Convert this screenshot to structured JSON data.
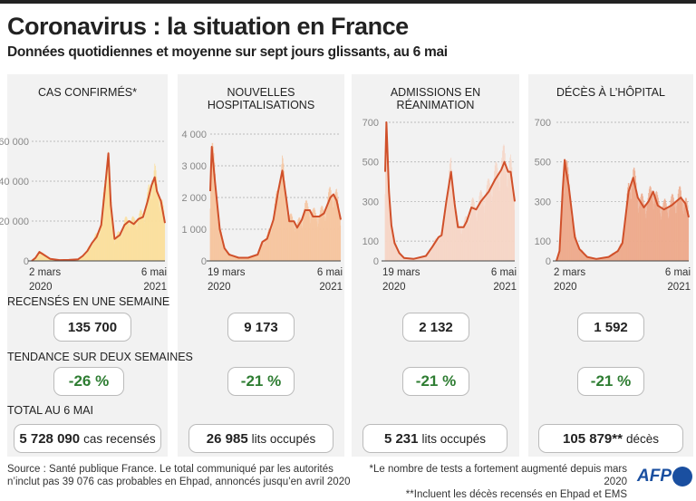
{
  "header": {
    "title": "Coronavirus : la situation en France",
    "subtitle": "Données quotidiennes et moyenne sur sept jours glissants, au 6 mai"
  },
  "colors": {
    "line": "#d0502a",
    "green": "#2e7d32",
    "panel": "#f2f2f2"
  },
  "sections": {
    "week": "RECENSÉS EN UNE SEMAINE",
    "trend": "TENDANCE SUR DEUX SEMAINES",
    "total": "TOTAL AU 6 MAI"
  },
  "chart_data": [
    {
      "type": "area",
      "title": "CAS CONFIRMÉS*",
      "fill": "#fbdf9c",
      "xlabel_start": [
        "2 mars",
        "2020"
      ],
      "xlabel_end": [
        "6 mai",
        "2021"
      ],
      "ylim": [
        0,
        60000
      ],
      "yticks": [
        {
          "v": 0,
          "label": "0"
        },
        {
          "v": 20000,
          "label": "20 000"
        },
        {
          "v": 40000,
          "label": "40 000"
        },
        {
          "v": 60000,
          "label": "60 000"
        }
      ],
      "days": 431,
      "series": [
        [
          0,
          0
        ],
        [
          12,
          1500
        ],
        [
          25,
          4500
        ],
        [
          40,
          3000
        ],
        [
          60,
          1000
        ],
        [
          90,
          400
        ],
        [
          120,
          500
        ],
        [
          150,
          800
        ],
        [
          165,
          2500
        ],
        [
          180,
          5000
        ],
        [
          195,
          9000
        ],
        [
          210,
          12000
        ],
        [
          225,
          18000
        ],
        [
          238,
          38000
        ],
        [
          248,
          54000
        ],
        [
          256,
          28000
        ],
        [
          268,
          11000
        ],
        [
          285,
          13000
        ],
        [
          300,
          18000
        ],
        [
          315,
          20000
        ],
        [
          330,
          18500
        ],
        [
          345,
          21000
        ],
        [
          360,
          22000
        ],
        [
          375,
          30000
        ],
        [
          388,
          38000
        ],
        [
          398,
          42000
        ],
        [
          405,
          35000
        ],
        [
          418,
          30000
        ],
        [
          431,
          19000
        ]
      ],
      "week": "135 700",
      "trend": "-26 %",
      "total": "5 728 090",
      "total_unit": "cas recensés"
    },
    {
      "type": "area",
      "title": "NOUVELLES HOSPITALISATIONS",
      "fill": "#f6c49e",
      "xlabel_start": [
        "19 mars",
        "2020"
      ],
      "xlabel_end": [
        "6 mai",
        "2021"
      ],
      "ylim": [
        0,
        4000
      ],
      "yticks": [
        {
          "v": 0,
          "label": "0"
        },
        {
          "v": 1000,
          "label": "1 000"
        },
        {
          "v": 2000,
          "label": "2 000"
        },
        {
          "v": 3000,
          "label": "3 000"
        },
        {
          "v": 4000,
          "label": "4 000"
        }
      ],
      "days": 413,
      "series": [
        [
          0,
          2200
        ],
        [
          5,
          3600
        ],
        [
          15,
          2500
        ],
        [
          30,
          1000
        ],
        [
          45,
          400
        ],
        [
          60,
          200
        ],
        [
          90,
          100
        ],
        [
          120,
          100
        ],
        [
          150,
          200
        ],
        [
          165,
          600
        ],
        [
          180,
          700
        ],
        [
          200,
          1300
        ],
        [
          215,
          2200
        ],
        [
          228,
          2850
        ],
        [
          240,
          2000
        ],
        [
          250,
          1250
        ],
        [
          265,
          1250
        ],
        [
          275,
          1050
        ],
        [
          290,
          1300
        ],
        [
          300,
          1600
        ],
        [
          315,
          1600
        ],
        [
          325,
          1400
        ],
        [
          345,
          1400
        ],
        [
          360,
          1500
        ],
        [
          380,
          2000
        ],
        [
          390,
          2100
        ],
        [
          400,
          1900
        ],
        [
          413,
          1300
        ]
      ],
      "week": "9 173",
      "trend": "-21 %",
      "total": "26 985",
      "total_unit": "lits occupés"
    },
    {
      "type": "area",
      "title": "ADMISSIONS EN RÉANIMATION",
      "fill": "#f6d6c6",
      "xlabel_start": [
        "19 mars",
        "2020"
      ],
      "xlabel_end": [
        "6 mai",
        "2021"
      ],
      "ylim": [
        0,
        700
      ],
      "yticks": [
        {
          "v": 0,
          "label": "0"
        },
        {
          "v": 100,
          "label": "100"
        },
        {
          "v": 300,
          "label": "300"
        },
        {
          "v": 500,
          "label": "500"
        },
        {
          "v": 700,
          "label": "700"
        }
      ],
      "days": 413,
      "series": [
        [
          0,
          450
        ],
        [
          4,
          700
        ],
        [
          12,
          350
        ],
        [
          20,
          180
        ],
        [
          30,
          90
        ],
        [
          45,
          40
        ],
        [
          60,
          15
        ],
        [
          90,
          10
        ],
        [
          130,
          25
        ],
        [
          150,
          70
        ],
        [
          170,
          120
        ],
        [
          180,
          130
        ],
        [
          195,
          300
        ],
        [
          210,
          450
        ],
        [
          222,
          280
        ],
        [
          232,
          170
        ],
        [
          250,
          170
        ],
        [
          260,
          200
        ],
        [
          275,
          270
        ],
        [
          290,
          260
        ],
        [
          305,
          300
        ],
        [
          330,
          350
        ],
        [
          350,
          410
        ],
        [
          370,
          460
        ],
        [
          380,
          500
        ],
        [
          392,
          450
        ],
        [
          400,
          450
        ],
        [
          413,
          300
        ]
      ],
      "week": "2 132",
      "trend": "-21 %",
      "total": "5 231",
      "total_unit": "lits occupés"
    },
    {
      "type": "area",
      "title": "DÉCÈS À L’HÔPITAL",
      "fill": "#eeaa8c",
      "xlabel_start": [
        "2 mars",
        "2020"
      ],
      "xlabel_end": [
        "6 mai",
        "2021"
      ],
      "ylim": [
        0,
        700
      ],
      "yticks": [
        {
          "v": 0,
          "label": "0"
        },
        {
          "v": 100,
          "label": "100"
        },
        {
          "v": 300,
          "label": "300"
        },
        {
          "v": 500,
          "label": "500"
        },
        {
          "v": 700,
          "label": "700"
        }
      ],
      "days": 431,
      "series": [
        [
          0,
          0
        ],
        [
          10,
          50
        ],
        [
          20,
          350
        ],
        [
          27,
          510
        ],
        [
          32,
          450
        ],
        [
          40,
          380
        ],
        [
          50,
          250
        ],
        [
          60,
          120
        ],
        [
          75,
          60
        ],
        [
          100,
          20
        ],
        [
          130,
          10
        ],
        [
          170,
          20
        ],
        [
          200,
          50
        ],
        [
          215,
          90
        ],
        [
          235,
          350
        ],
        [
          250,
          420
        ],
        [
          265,
          320
        ],
        [
          285,
          270
        ],
        [
          300,
          300
        ],
        [
          315,
          350
        ],
        [
          330,
          280
        ],
        [
          350,
          260
        ],
        [
          375,
          280
        ],
        [
          390,
          300
        ],
        [
          405,
          320
        ],
        [
          420,
          290
        ],
        [
          431,
          220
        ]
      ],
      "week": "1 592",
      "trend": "-21 %",
      "total": "105 879**",
      "total_unit": "décès"
    }
  ],
  "footer": {
    "source1": "Source : Santé publique France. Le total communiqué par les autorités",
    "source2": "n’inclut pas 39 076 cas probables en Ehpad, annoncés jusqu’en avril 2020",
    "note1": "*Le nombre de tests a fortement augmenté depuis mars 2020",
    "note2": "**Incluent les décès recensés en Ehpad et EMS",
    "logo": "AFP"
  }
}
